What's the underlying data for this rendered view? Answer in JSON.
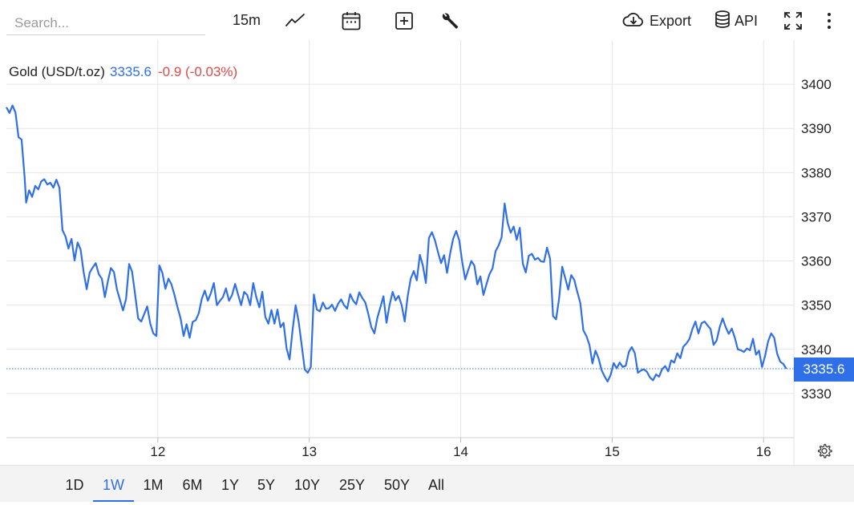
{
  "toolbar": {
    "search_placeholder": "Search...",
    "interval": "15m",
    "export_label": "Export",
    "api_label": "API",
    "icons": [
      "line-chart-icon",
      "calendar-icon",
      "add-indicator-icon",
      "wrench-icon",
      "cloud-download-icon",
      "database-icon",
      "fullscreen-icon",
      "more-vert-icon"
    ]
  },
  "legend": {
    "name": "Gold (USD/t.oz)",
    "price": "3335.6",
    "change": "-0.9 (-0.03%)"
  },
  "price_tag": "3335.6",
  "ranges": [
    "1D",
    "1W",
    "1M",
    "6M",
    "1Y",
    "5Y",
    "10Y",
    "25Y",
    "50Y",
    "All"
  ],
  "active_range": "1W",
  "colors": {
    "line": "#2f6fe8",
    "change_negative": "#e04848",
    "grid": "#e6e6e6"
  },
  "chart_data": {
    "type": "line",
    "title": "Gold (USD/t.oz)",
    "x_ticks": [
      {
        "x": 12,
        "label": "12"
      },
      {
        "x": 13,
        "label": "13"
      },
      {
        "x": 14,
        "label": "14"
      },
      {
        "x": 15,
        "label": "15"
      },
      {
        "x": 16,
        "label": "16"
      }
    ],
    "xlim": [
      11.0,
      16.2
    ],
    "y_ticks": [
      3330,
      3340,
      3350,
      3360,
      3370,
      3380,
      3390,
      3400
    ],
    "ylim": [
      3320,
      3410
    ],
    "grid": true,
    "last_value": 3335.6,
    "series": [
      {
        "name": "Gold (USD/t.oz)",
        "points": [
          [
            11.0,
            3394.8
          ],
          [
            11.02,
            3393.5
          ],
          [
            11.04,
            3395.2
          ],
          [
            11.06,
            3393.6
          ],
          [
            11.08,
            3388
          ],
          [
            11.1,
            3387.5
          ],
          [
            11.12,
            3379
          ],
          [
            11.13,
            3373.2
          ],
          [
            11.15,
            3376
          ],
          [
            11.17,
            3374.5
          ],
          [
            11.19,
            3377
          ],
          [
            11.21,
            3376.2
          ],
          [
            11.23,
            3378
          ],
          [
            11.25,
            3378.5
          ],
          [
            11.27,
            3377.3
          ],
          [
            11.29,
            3377.7
          ],
          [
            11.31,
            3376.6
          ],
          [
            11.33,
            3378.4
          ],
          [
            11.35,
            3376.6
          ],
          [
            11.37,
            3367
          ],
          [
            11.39,
            3365.5
          ],
          [
            11.41,
            3362.8
          ],
          [
            11.43,
            3365
          ],
          [
            11.45,
            3360.1
          ],
          [
            11.47,
            3364.2
          ],
          [
            11.49,
            3362.6
          ],
          [
            11.51,
            3357.5
          ],
          [
            11.53,
            3353.6
          ],
          [
            11.55,
            3357.4
          ],
          [
            11.57,
            3358.5
          ],
          [
            11.59,
            3359.5
          ],
          [
            11.61,
            3357
          ],
          [
            11.63,
            3356
          ],
          [
            11.65,
            3351.8
          ],
          [
            11.67,
            3355.4
          ],
          [
            11.69,
            3358.4
          ],
          [
            11.71,
            3357.5
          ],
          [
            11.73,
            3353.5
          ],
          [
            11.75,
            3351.2
          ],
          [
            11.77,
            3348.8
          ],
          [
            11.79,
            3351.4
          ],
          [
            11.81,
            3359.3
          ],
          [
            11.83,
            3357.6
          ],
          [
            11.85,
            3352.4
          ],
          [
            11.87,
            3347
          ],
          [
            11.89,
            3346.3
          ],
          [
            11.91,
            3348
          ],
          [
            11.93,
            3349.7
          ],
          [
            11.95,
            3345.8
          ],
          [
            11.97,
            3343.6
          ],
          [
            11.99,
            3343
          ],
          [
            12.01,
            3359
          ],
          [
            12.03,
            3357.3
          ],
          [
            12.05,
            3353.7
          ],
          [
            12.07,
            3356
          ],
          [
            12.09,
            3354.7
          ],
          [
            12.11,
            3352.3
          ],
          [
            12.13,
            3349.5
          ],
          [
            12.15,
            3347
          ],
          [
            12.17,
            3343
          ],
          [
            12.19,
            3345.7
          ],
          [
            12.21,
            3342.6
          ],
          [
            12.23,
            3346.2
          ],
          [
            12.25,
            3346.6
          ],
          [
            12.27,
            3348.1
          ],
          [
            12.29,
            3351.4
          ],
          [
            12.31,
            3353.3
          ],
          [
            12.33,
            3351
          ],
          [
            12.35,
            3352.7
          ],
          [
            12.37,
            3355
          ],
          [
            12.39,
            3350
          ],
          [
            12.41,
            3351
          ],
          [
            12.43,
            3351.8
          ],
          [
            12.45,
            3353.8
          ],
          [
            12.47,
            3351
          ],
          [
            12.49,
            3352.3
          ],
          [
            12.51,
            3354.8
          ],
          [
            12.53,
            3352.4
          ],
          [
            12.55,
            3350
          ],
          [
            12.57,
            3353
          ],
          [
            12.59,
            3352.3
          ],
          [
            12.61,
            3350
          ],
          [
            12.63,
            3355
          ],
          [
            12.65,
            3351.8
          ],
          [
            12.67,
            3349.5
          ],
          [
            12.69,
            3353
          ],
          [
            12.71,
            3347.3
          ],
          [
            12.73,
            3345.8
          ],
          [
            12.75,
            3348.9
          ],
          [
            12.77,
            3345.8
          ],
          [
            12.79,
            3349
          ],
          [
            12.81,
            3345
          ],
          [
            12.83,
            3346
          ],
          [
            12.85,
            3340.2
          ],
          [
            12.87,
            3337.7
          ],
          [
            12.89,
            3344.4
          ],
          [
            12.91,
            3350
          ],
          [
            12.93,
            3346.2
          ],
          [
            12.95,
            3341
          ],
          [
            12.97,
            3335.5
          ],
          [
            12.99,
            3334.7
          ],
          [
            13.01,
            3336
          ],
          [
            13.03,
            3352.4
          ],
          [
            13.05,
            3349
          ],
          [
            13.07,
            3348.6
          ],
          [
            13.09,
            3350.6
          ],
          [
            13.11,
            3349.2
          ],
          [
            13.13,
            3349.3
          ],
          [
            13.15,
            3350.1
          ],
          [
            13.17,
            3348.7
          ],
          [
            13.19,
            3350.3
          ],
          [
            13.21,
            3351.3
          ],
          [
            13.23,
            3350
          ],
          [
            13.25,
            3349.2
          ],
          [
            13.27,
            3352.5
          ],
          [
            13.29,
            3351
          ],
          [
            13.31,
            3350.2
          ],
          [
            13.33,
            3352.9
          ],
          [
            13.35,
            3351.6
          ],
          [
            13.37,
            3350.6
          ],
          [
            13.39,
            3348
          ],
          [
            13.41,
            3345
          ],
          [
            13.43,
            3343.6
          ],
          [
            13.45,
            3347.2
          ],
          [
            13.47,
            3349.6
          ],
          [
            13.49,
            3352
          ],
          [
            13.51,
            3346
          ],
          [
            13.53,
            3350
          ],
          [
            13.55,
            3353
          ],
          [
            13.57,
            3351.1
          ],
          [
            13.59,
            3352.1
          ],
          [
            13.61,
            3350
          ],
          [
            13.63,
            3346.3
          ],
          [
            13.65,
            3352
          ],
          [
            13.67,
            3356
          ],
          [
            13.69,
            3357.7
          ],
          [
            13.71,
            3355.6
          ],
          [
            13.73,
            3361.4
          ],
          [
            13.75,
            3359
          ],
          [
            13.77,
            3355
          ],
          [
            13.79,
            3365.2
          ],
          [
            13.81,
            3366.5
          ],
          [
            13.83,
            3364.7
          ],
          [
            13.85,
            3362
          ],
          [
            13.87,
            3359.5
          ],
          [
            13.89,
            3361.3
          ],
          [
            13.91,
            3357.3
          ],
          [
            13.93,
            3361.6
          ],
          [
            13.95,
            3365
          ],
          [
            13.97,
            3366.8
          ],
          [
            13.99,
            3364.7
          ],
          [
            14.01,
            3359.8
          ],
          [
            14.03,
            3355.8
          ],
          [
            14.05,
            3358
          ],
          [
            14.07,
            3360
          ],
          [
            14.09,
            3359
          ],
          [
            14.11,
            3354.7
          ],
          [
            14.13,
            3356.5
          ],
          [
            14.15,
            3352.3
          ],
          [
            14.17,
            3354.7
          ],
          [
            14.19,
            3357
          ],
          [
            14.21,
            3358.3
          ],
          [
            14.23,
            3362.2
          ],
          [
            14.25,
            3363.5
          ],
          [
            14.27,
            3365.3
          ],
          [
            14.29,
            3373
          ],
          [
            14.31,
            3368.6
          ],
          [
            14.33,
            3366.4
          ],
          [
            14.35,
            3367.8
          ],
          [
            14.37,
            3364.8
          ],
          [
            14.39,
            3367.5
          ],
          [
            14.41,
            3359.4
          ],
          [
            14.43,
            3357.4
          ],
          [
            14.45,
            3361.2
          ],
          [
            14.47,
            3361.6
          ],
          [
            14.49,
            3360.3
          ],
          [
            14.51,
            3360.7
          ],
          [
            14.53,
            3359.9
          ],
          [
            14.55,
            3359.8
          ],
          [
            14.57,
            3363
          ],
          [
            14.59,
            3360.5
          ],
          [
            14.61,
            3347.5
          ],
          [
            14.63,
            3346.8
          ],
          [
            14.65,
            3351.6
          ],
          [
            14.67,
            3358.7
          ],
          [
            14.69,
            3356.2
          ],
          [
            14.71,
            3353.5
          ],
          [
            14.73,
            3356.8
          ],
          [
            14.75,
            3355.7
          ],
          [
            14.77,
            3353
          ],
          [
            14.79,
            3350.5
          ],
          [
            14.81,
            3344.3
          ],
          [
            14.83,
            3343
          ],
          [
            14.85,
            3341
          ],
          [
            14.87,
            3336.8
          ],
          [
            14.89,
            3339.7
          ],
          [
            14.91,
            3338
          ],
          [
            14.93,
            3335.3
          ],
          [
            14.95,
            3333.9
          ],
          [
            14.97,
            3332.7
          ],
          [
            14.99,
            3334.2
          ],
          [
            15.01,
            3336.9
          ],
          [
            15.03,
            3335.7
          ],
          [
            15.05,
            3337
          ],
          [
            15.07,
            3336
          ],
          [
            15.09,
            3336.3
          ],
          [
            15.11,
            3339.4
          ],
          [
            15.13,
            3340.5
          ],
          [
            15.15,
            3339.1
          ],
          [
            15.17,
            3334.7
          ],
          [
            15.19,
            3335.2
          ],
          [
            15.21,
            3335.5
          ],
          [
            15.23,
            3334.9
          ],
          [
            15.25,
            3333.6
          ],
          [
            15.27,
            3333
          ],
          [
            15.29,
            3334.3
          ],
          [
            15.31,
            3333.8
          ],
          [
            15.33,
            3335.5
          ],
          [
            15.35,
            3336.2
          ],
          [
            15.37,
            3335
          ],
          [
            15.39,
            3337.5
          ],
          [
            15.41,
            3337
          ],
          [
            15.43,
            3339.1
          ],
          [
            15.45,
            3338
          ],
          [
            15.47,
            3340.6
          ],
          [
            15.49,
            3341.3
          ],
          [
            15.51,
            3342.3
          ],
          [
            15.53,
            3344.6
          ],
          [
            15.55,
            3346.3
          ],
          [
            15.57,
            3343.6
          ],
          [
            15.59,
            3345.9
          ],
          [
            15.61,
            3346.3
          ],
          [
            15.63,
            3345.4
          ],
          [
            15.65,
            3344.6
          ],
          [
            15.67,
            3341
          ],
          [
            15.69,
            3342
          ],
          [
            15.71,
            3345
          ],
          [
            15.73,
            3347
          ],
          [
            15.75,
            3345
          ],
          [
            15.77,
            3343.5
          ],
          [
            15.79,
            3344.7
          ],
          [
            15.81,
            3342.6
          ],
          [
            15.83,
            3340
          ],
          [
            15.85,
            3339.8
          ],
          [
            15.87,
            3339.4
          ],
          [
            15.89,
            3340.2
          ],
          [
            15.91,
            3339.8
          ],
          [
            15.93,
            3342.4
          ],
          [
            15.95,
            3338.8
          ],
          [
            15.97,
            3339.7
          ],
          [
            15.99,
            3336
          ],
          [
            16.01,
            3338.5
          ],
          [
            16.03,
            3341.8
          ],
          [
            16.05,
            3343.6
          ],
          [
            16.07,
            3342.6
          ],
          [
            16.09,
            3339
          ],
          [
            16.11,
            3337.2
          ],
          [
            16.13,
            3336.7
          ],
          [
            16.15,
            3335.6
          ]
        ]
      }
    ]
  }
}
